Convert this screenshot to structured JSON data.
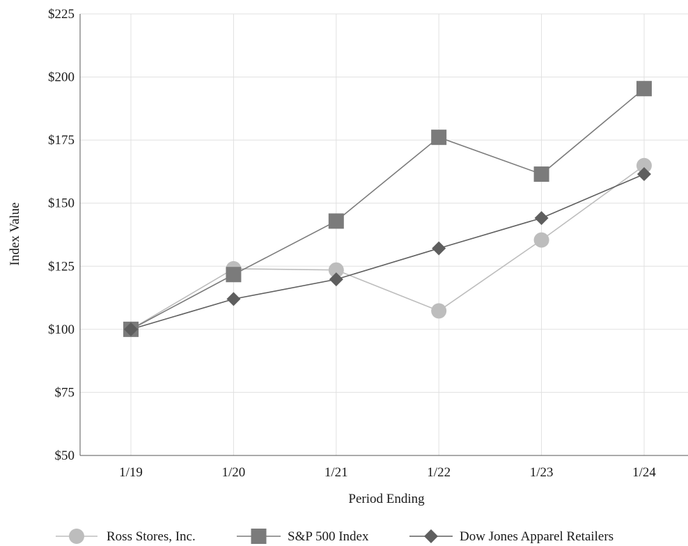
{
  "chart_data": {
    "type": "line",
    "categories": [
      "1/19",
      "1/20",
      "1/21",
      "1/22",
      "1/23",
      "1/24"
    ],
    "series": [
      {
        "name": "Ross Stores, Inc.",
        "values": [
          100,
          124,
          123.5,
          107.3,
          135.4,
          164.9
        ],
        "color": "#bdbdbd",
        "marker": "circle"
      },
      {
        "name": "S&P 500 Index",
        "values": [
          100,
          121.7,
          142.9,
          176.1,
          161.5,
          195.4
        ],
        "color": "#7b7b7b",
        "marker": "square"
      },
      {
        "name": "Dow Jones Apparel Retailers",
        "values": [
          100,
          112,
          119.8,
          132.1,
          144.1,
          161.5
        ],
        "color": "#5e5e5e",
        "marker": "diamond"
      }
    ],
    "y_ticks": [
      "$225",
      "$200",
      "$175",
      "$150",
      "$125",
      "$100",
      "$75",
      "$50"
    ],
    "ylim": [
      50,
      225
    ],
    "xlabel": "Period Ending",
    "ylabel": "Index Value",
    "grid": true,
    "legend_position": "bottom"
  }
}
